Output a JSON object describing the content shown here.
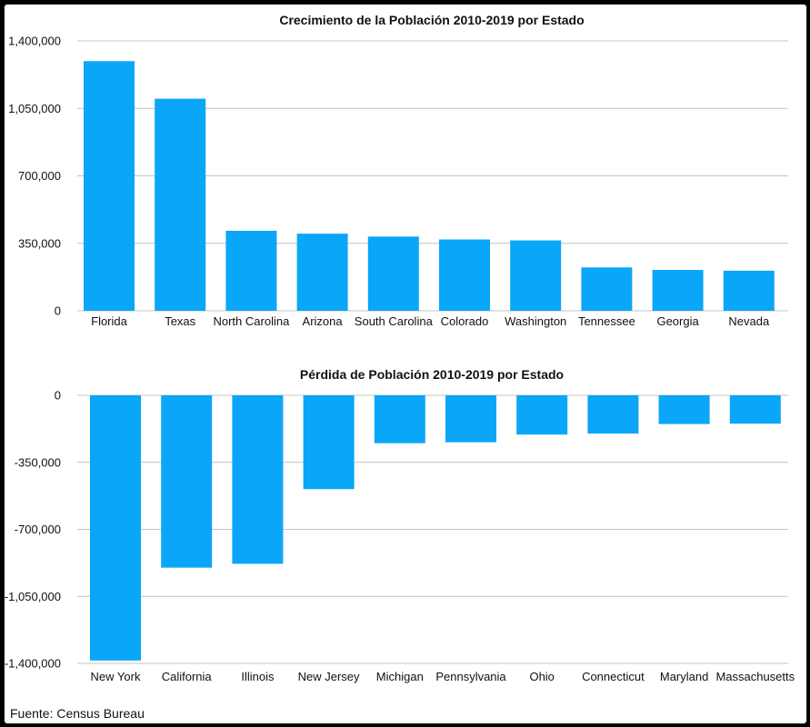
{
  "source": "Fuente: Census Bureau",
  "bar_color": "#0aa6f8",
  "chart_data": [
    {
      "type": "bar",
      "title": "Crecimiento de la Población 2010-2019 por Estado",
      "xlabel": "",
      "ylabel": "",
      "ylim": [
        0,
        1400000
      ],
      "yticks": [
        0,
        350000,
        700000,
        1050000,
        1400000
      ],
      "ytick_labels": [
        "0",
        "350,000",
        "700,000",
        "1,050,000",
        "1,400,000"
      ],
      "grid": true,
      "categories": [
        "Florida",
        "Texas",
        "North Carolina",
        "Arizona",
        "South Carolina",
        "Colorado",
        "Washington",
        "Tennessee",
        "Georgia",
        "Nevada"
      ],
      "values": [
        1295000,
        1100000,
        415000,
        400000,
        385000,
        370000,
        365000,
        225000,
        212000,
        208000
      ]
    },
    {
      "type": "bar",
      "title": "Pérdida de Población 2010-2019 por Estado",
      "xlabel": "",
      "ylabel": "",
      "ylim": [
        -1400000,
        0
      ],
      "yticks": [
        0,
        -350000,
        -700000,
        -1050000,
        -1400000
      ],
      "ytick_labels": [
        "0",
        "-350,000",
        "-700,000",
        "-1,050,000",
        "-1,400,000"
      ],
      "grid": true,
      "categories": [
        "New York",
        "California",
        "Illinois",
        "New Jersey",
        "Michigan",
        "Pennsylvania",
        "Ohio",
        "Connecticut",
        "Maryland",
        "Massachusetts"
      ],
      "values": [
        -1385000,
        -900000,
        -880000,
        -490000,
        -250000,
        -245000,
        -205000,
        -200000,
        -150000,
        -148000
      ]
    }
  ]
}
